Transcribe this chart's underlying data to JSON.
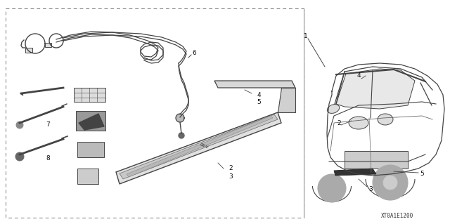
{
  "background_color": "#ffffff",
  "diagram_code": "XT0A1E1200",
  "fig_width": 6.4,
  "fig_height": 3.19,
  "dpi": 100,
  "line_color": "#444444",
  "light_gray": "#cccccc",
  "mid_gray": "#888888",
  "dark_gray": "#333333"
}
